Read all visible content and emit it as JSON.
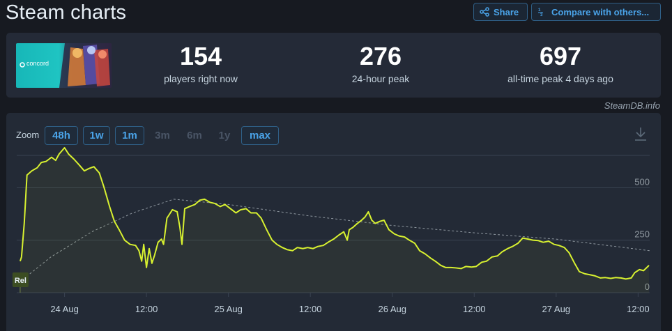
{
  "header": {
    "title": "Steam charts",
    "share_label": "Share",
    "compare_label": "Compare with others..."
  },
  "stats": {
    "game_logo_text": "concord",
    "current": {
      "value": "154",
      "label": "players right now"
    },
    "peak_24h": {
      "value": "276",
      "label": "24-hour peak"
    },
    "all_time": {
      "value": "697",
      "label": "all-time peak 4 days ago"
    }
  },
  "credit": "SteamDB.info",
  "zoom": {
    "label": "Zoom",
    "options": [
      {
        "label": "48h",
        "enabled": true
      },
      {
        "label": "1w",
        "enabled": true
      },
      {
        "label": "1m",
        "enabled": true
      },
      {
        "label": "3m",
        "enabled": false
      },
      {
        "label": "6m",
        "enabled": false
      },
      {
        "label": "1y",
        "enabled": false
      },
      {
        "label": "max",
        "enabled": true
      }
    ]
  },
  "icons": {
    "share": "share-icon",
    "compare": "compare-icon",
    "download": "download-icon"
  },
  "colors": {
    "line": "#d8f130",
    "accent": "#4aa3e8",
    "marker_bg": "#3c4d22"
  },
  "chart_data": {
    "type": "line",
    "x_unit": "hours from 23 Aug 12:00",
    "x_ticks": [
      {
        "x": 12,
        "label": "24 Aug"
      },
      {
        "x": 24,
        "label": "12:00"
      },
      {
        "x": 36,
        "label": "25 Aug"
      },
      {
        "x": 48,
        "label": "12:00"
      },
      {
        "x": 60,
        "label": "26 Aug"
      },
      {
        "x": 72,
        "label": "12:00"
      },
      {
        "x": 84,
        "label": "27 Aug"
      },
      {
        "x": 96,
        "label": "12:00"
      }
    ],
    "y_ticks": [
      0,
      250,
      500
    ],
    "ylim": [
      0,
      730
    ],
    "xlim": [
      5.0,
      97.7
    ],
    "grid": true,
    "release_marker": {
      "x": 5.5,
      "label": "Rel"
    },
    "series": [
      {
        "values": [
          [
            5.5,
            150
          ],
          [
            5.7,
            170
          ],
          [
            6.1,
            330
          ],
          [
            6.5,
            560
          ],
          [
            7.2,
            580
          ],
          [
            8.0,
            595
          ],
          [
            8.6,
            620
          ],
          [
            9.3,
            625
          ],
          [
            10.1,
            645
          ],
          [
            10.7,
            630
          ],
          [
            11.2,
            660
          ],
          [
            12.0,
            690
          ],
          [
            12.6,
            660
          ],
          [
            13.4,
            635
          ],
          [
            14.1,
            610
          ],
          [
            14.9,
            580
          ],
          [
            15.5,
            590
          ],
          [
            16.3,
            600
          ],
          [
            17.1,
            570
          ],
          [
            17.8,
            500
          ],
          [
            18.6,
            410
          ],
          [
            19.3,
            340
          ],
          [
            20.0,
            300
          ],
          [
            20.8,
            250
          ],
          [
            21.6,
            230
          ],
          [
            22.4,
            225
          ],
          [
            22.9,
            200
          ],
          [
            23.3,
            150
          ],
          [
            23.6,
            230
          ],
          [
            24.0,
            120
          ],
          [
            24.4,
            210
          ],
          [
            24.8,
            140
          ],
          [
            25.2,
            180
          ],
          [
            25.7,
            240
          ],
          [
            26.2,
            255
          ],
          [
            26.5,
            230
          ],
          [
            27.0,
            355
          ],
          [
            27.8,
            395
          ],
          [
            28.5,
            385
          ],
          [
            28.9,
            310
          ],
          [
            29.2,
            230
          ],
          [
            29.6,
            400
          ],
          [
            30.3,
            410
          ],
          [
            31.1,
            420
          ],
          [
            31.8,
            440
          ],
          [
            32.5,
            445
          ],
          [
            33.3,
            430
          ],
          [
            34.0,
            425
          ],
          [
            34.8,
            410
          ],
          [
            35.5,
            420
          ],
          [
            36.3,
            400
          ],
          [
            37.1,
            380
          ],
          [
            37.8,
            395
          ],
          [
            38.6,
            400
          ],
          [
            39.3,
            380
          ],
          [
            40.1,
            380
          ],
          [
            40.8,
            355
          ],
          [
            41.6,
            300
          ],
          [
            42.4,
            250
          ],
          [
            43.1,
            230
          ],
          [
            43.9,
            215
          ],
          [
            44.6,
            205
          ],
          [
            45.4,
            200
          ],
          [
            46.1,
            215
          ],
          [
            46.9,
            210
          ],
          [
            47.6,
            215
          ],
          [
            48.4,
            210
          ],
          [
            49.1,
            220
          ],
          [
            49.9,
            225
          ],
          [
            50.6,
            240
          ],
          [
            51.4,
            255
          ],
          [
            52.2,
            275
          ],
          [
            52.9,
            290
          ],
          [
            53.4,
            250
          ],
          [
            53.7,
            300
          ],
          [
            54.2,
            310
          ],
          [
            54.9,
            330
          ],
          [
            55.5,
            345
          ],
          [
            56.0,
            360
          ],
          [
            56.5,
            385
          ],
          [
            57.0,
            345
          ],
          [
            57.5,
            330
          ],
          [
            58.2,
            340
          ],
          [
            58.8,
            345
          ],
          [
            59.5,
            300
          ],
          [
            60.3,
            280
          ],
          [
            61.0,
            270
          ],
          [
            61.8,
            265
          ],
          [
            62.5,
            250
          ],
          [
            63.3,
            235
          ],
          [
            64.0,
            200
          ],
          [
            64.8,
            185
          ],
          [
            65.6,
            165
          ],
          [
            66.3,
            150
          ],
          [
            67.1,
            130
          ],
          [
            67.8,
            120
          ],
          [
            68.6,
            120
          ],
          [
            69.3,
            118
          ],
          [
            70.1,
            115
          ],
          [
            70.8,
            125
          ],
          [
            71.6,
            122
          ],
          [
            72.3,
            125
          ],
          [
            73.1,
            145
          ],
          [
            73.8,
            150
          ],
          [
            74.6,
            170
          ],
          [
            75.4,
            175
          ],
          [
            76.1,
            195
          ],
          [
            76.9,
            210
          ],
          [
            77.6,
            220
          ],
          [
            78.4,
            235
          ],
          [
            79.1,
            260
          ],
          [
            79.9,
            255
          ],
          [
            80.6,
            250
          ],
          [
            81.4,
            248
          ],
          [
            82.1,
            240
          ],
          [
            82.9,
            245
          ],
          [
            83.7,
            230
          ],
          [
            84.4,
            225
          ],
          [
            85.2,
            215
          ],
          [
            85.9,
            190
          ],
          [
            86.7,
            140
          ],
          [
            87.4,
            100
          ],
          [
            88.2,
            90
          ],
          [
            89.0,
            85
          ],
          [
            89.7,
            80
          ],
          [
            90.5,
            70
          ],
          [
            91.2,
            72
          ],
          [
            92.0,
            68
          ],
          [
            92.7,
            72
          ],
          [
            93.5,
            70
          ],
          [
            94.2,
            65
          ],
          [
            95.0,
            70
          ],
          [
            95.5,
            95
          ],
          [
            96.2,
            110
          ],
          [
            96.8,
            105
          ],
          [
            97.6,
            130
          ]
        ]
      },
      {
        "style": "dashed",
        "values": [
          [
            5.0,
            40
          ],
          [
            10.0,
            170
          ],
          [
            16.0,
            290
          ],
          [
            22.0,
            380
          ],
          [
            28.0,
            445
          ],
          [
            36.0,
            420
          ],
          [
            48.0,
            365
          ],
          [
            60.0,
            320
          ],
          [
            72.0,
            285
          ],
          [
            84.0,
            255
          ],
          [
            97.7,
            200
          ]
        ]
      }
    ]
  }
}
